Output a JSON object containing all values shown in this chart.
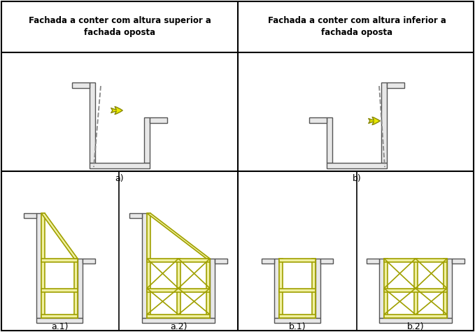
{
  "title_left": "Fachada a conter com altura superior a\nfachada oposta",
  "title_right": "Fachada a conter com altura inferior a\nfachada oposta",
  "label_a": "a)",
  "label_b": "b)",
  "label_a1": "a.1)",
  "label_a2": "a.2)",
  "label_b1": "b.1)",
  "label_b2": "b.2)",
  "wall_fill": "#e8e8e8",
  "wall_edge": "#555555",
  "wall_lw": 1.0,
  "beam_fill": "#f0f0a0",
  "beam_edge": "#a0a000",
  "beam_lw": 1.2,
  "dashed_color": "#888888",
  "arrow_fill": "#e8e800",
  "arrow_edge": "#888800",
  "grid_color": "#000000",
  "grid_lw": 1.2,
  "title_fontsize": 8.5,
  "label_fontsize": 9
}
